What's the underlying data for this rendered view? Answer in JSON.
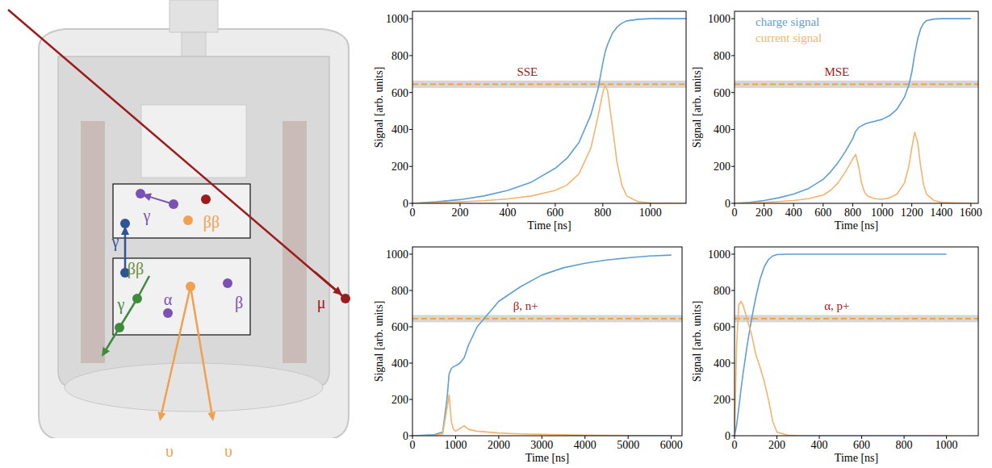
{
  "diagram": {
    "labels": [
      {
        "text": "γ",
        "color": "#7b52b3"
      },
      {
        "text": "ββ",
        "color": "#f0a050"
      },
      {
        "text": "γ",
        "color": "#2f5597"
      },
      {
        "text": "ββ",
        "color": "#6a8f3a"
      },
      {
        "text": "γ",
        "color": "#3c8c3c"
      },
      {
        "text": "α",
        "color": "#7b52b3"
      },
      {
        "text": "β",
        "color": "#7b52b3"
      },
      {
        "text": "μ",
        "color": "#9b1c1c"
      },
      {
        "text": "υ",
        "color": "#f0a050"
      },
      {
        "text": "υ",
        "color": "#f0a050"
      }
    ]
  },
  "chart_data": [
    {
      "type": "line",
      "annotation": "SSE",
      "xlabel": "Time [ns]",
      "ylabel": "Signal [arb. units]",
      "xlim": [
        0,
        1150
      ],
      "ylim": [
        0,
        1040
      ],
      "xticks": [
        0,
        200,
        400,
        600,
        800,
        1000
      ],
      "yticks": [
        0,
        200,
        400,
        600,
        800,
        1000
      ],
      "threshold": 645,
      "threshold_band": [
        625,
        665
      ],
      "x": [
        0,
        100,
        200,
        300,
        400,
        500,
        600,
        650,
        700,
        750,
        780,
        800,
        810,
        820,
        840,
        860,
        880,
        900,
        950,
        1000,
        1150
      ],
      "series": [
        {
          "color": "#5e9ed6",
          "values": [
            0,
            8,
            20,
            40,
            70,
            115,
            190,
            245,
            330,
            480,
            620,
            760,
            820,
            860,
            920,
            955,
            975,
            988,
            997,
            1000,
            1000
          ]
        },
        {
          "color": "#f5b46e",
          "values": [
            0,
            3,
            8,
            14,
            24,
            40,
            70,
            100,
            160,
            300,
            470,
            600,
            640,
            610,
            420,
            220,
            100,
            40,
            8,
            2,
            0
          ]
        }
      ]
    },
    {
      "type": "line",
      "annotation": "MSE",
      "xlabel": "Time [ns]",
      "ylabel": "Signal [arb. units]",
      "xlim": [
        0,
        1650
      ],
      "ylim": [
        0,
        1040
      ],
      "xticks": [
        0,
        200,
        400,
        600,
        800,
        1000,
        1200,
        1400,
        1600
      ],
      "yticks": [
        0,
        200,
        400,
        600,
        800,
        1000
      ],
      "threshold": 645,
      "threshold_band": [
        625,
        665
      ],
      "legend": "upper left",
      "x": [
        0,
        100,
        200,
        300,
        400,
        500,
        600,
        650,
        700,
        750,
        800,
        820,
        840,
        860,
        880,
        900,
        950,
        1000,
        1050,
        1100,
        1150,
        1180,
        1200,
        1220,
        1240,
        1260,
        1280,
        1300,
        1350,
        1400,
        1500,
        1600
      ],
      "series": [
        {
          "name": "charge signal",
          "color": "#5e9ed6",
          "values": [
            0,
            5,
            15,
            30,
            50,
            80,
            130,
            170,
            220,
            280,
            350,
            390,
            410,
            420,
            428,
            435,
            445,
            455,
            475,
            510,
            575,
            640,
            710,
            810,
            890,
            945,
            975,
            990,
            998,
            1000,
            1000,
            1000
          ]
        },
        {
          "name": "current signal",
          "color": "#f5b46e",
          "values": [
            0,
            2,
            5,
            10,
            15,
            25,
            45,
            70,
            110,
            170,
            240,
            265,
            200,
            110,
            60,
            40,
            25,
            22,
            30,
            50,
            110,
            200,
            300,
            385,
            330,
            200,
            100,
            50,
            15,
            5,
            2,
            0
          ]
        }
      ]
    },
    {
      "type": "line",
      "annotation": "β, n+",
      "xlabel": "Time [ns]",
      "ylabel": "Signal [arb. units]",
      "xlim": [
        0,
        6250
      ],
      "ylim": [
        0,
        1040
      ],
      "xticks": [
        0,
        1000,
        2000,
        3000,
        4000,
        5000,
        6000
      ],
      "yticks": [
        0,
        200,
        400,
        600,
        800,
        1000
      ],
      "threshold": 645,
      "threshold_band": [
        625,
        665
      ],
      "x": [
        0,
        500,
        700,
        800,
        850,
        900,
        950,
        1000,
        1100,
        1200,
        1300,
        1500,
        2000,
        2500,
        3000,
        3500,
        4000,
        4500,
        5000,
        5500,
        6000
      ],
      "series": [
        {
          "color": "#5e9ed6",
          "values": [
            0,
            5,
            20,
            200,
            340,
            370,
            380,
            385,
            400,
            430,
            500,
            600,
            740,
            820,
            885,
            925,
            950,
            968,
            980,
            990,
            995
          ]
        },
        {
          "color": "#f5b46e",
          "values": [
            0,
            2,
            10,
            150,
            225,
            80,
            35,
            25,
            40,
            55,
            35,
            25,
            15,
            10,
            7,
            5,
            3,
            2,
            1,
            1,
            0
          ]
        }
      ]
    },
    {
      "type": "line",
      "annotation": "α, p+",
      "xlabel": "Time [ns]",
      "ylabel": "Signal [arb. units]",
      "xlim": [
        0,
        1150
      ],
      "ylim": [
        0,
        1040
      ],
      "xticks": [
        0,
        200,
        400,
        600,
        800,
        1000
      ],
      "yticks": [
        0,
        200,
        400,
        600,
        800,
        1000
      ],
      "threshold": 645,
      "threshold_band": [
        625,
        665
      ],
      "x": [
        0,
        10,
        20,
        30,
        40,
        60,
        80,
        100,
        120,
        140,
        160,
        180,
        200,
        250,
        300,
        400,
        600,
        800,
        1000
      ],
      "series": [
        {
          "color": "#5e9ed6",
          "values": [
            0,
            60,
            150,
            250,
            340,
            500,
            640,
            760,
            860,
            930,
            970,
            990,
            998,
            1000,
            1000,
            1000,
            1000,
            1000,
            1000
          ]
        },
        {
          "color": "#f5b46e",
          "values": [
            0,
            500,
            720,
            740,
            720,
            640,
            560,
            450,
            380,
            300,
            200,
            80,
            20,
            3,
            0,
            0,
            0,
            0,
            0
          ]
        }
      ]
    }
  ]
}
